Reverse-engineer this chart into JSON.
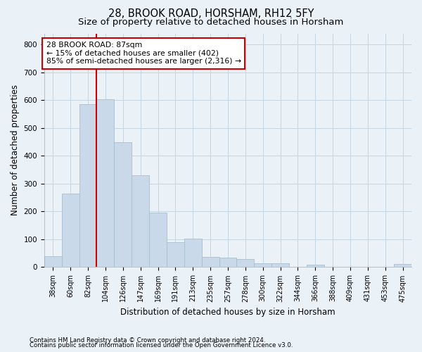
{
  "title1": "28, BROOK ROAD, HORSHAM, RH12 5FY",
  "title2": "Size of property relative to detached houses in Horsham",
  "xlabel": "Distribution of detached houses by size in Horsham",
  "ylabel": "Number of detached properties",
  "bar_labels": [
    "38sqm",
    "60sqm",
    "82sqm",
    "104sqm",
    "126sqm",
    "147sqm",
    "169sqm",
    "191sqm",
    "213sqm",
    "235sqm",
    "257sqm",
    "278sqm",
    "300sqm",
    "322sqm",
    "344sqm",
    "366sqm",
    "388sqm",
    "409sqm",
    "431sqm",
    "453sqm",
    "475sqm"
  ],
  "bar_values": [
    38,
    265,
    585,
    603,
    450,
    330,
    197,
    90,
    102,
    37,
    35,
    30,
    13,
    13,
    0,
    8,
    0,
    0,
    0,
    0,
    10
  ],
  "bar_color": "#c9d9ea",
  "bar_edgecolor": "#a8becc",
  "grid_color": "#c5d5e2",
  "bg_color": "#eaf1f7",
  "red_line_index": 2,
  "annotation_text": "28 BROOK ROAD: 87sqm\n← 15% of detached houses are smaller (402)\n85% of semi-detached houses are larger (2,316) →",
  "annotation_box_color": "#ffffff",
  "annotation_border_color": "#cc0000",
  "ylim": [
    0,
    840
  ],
  "yticks": [
    0,
    100,
    200,
    300,
    400,
    500,
    600,
    700,
    800
  ],
  "footnote1": "Contains HM Land Registry data © Crown copyright and database right 2024.",
  "footnote2": "Contains public sector information licensed under the Open Government Licence v3.0.",
  "title1_fontsize": 10.5,
  "title2_fontsize": 9.5,
  "tick_fontsize": 7,
  "ylabel_fontsize": 8.5,
  "xlabel_fontsize": 8.5,
  "annotation_fontsize": 7.8,
  "footnote_fontsize": 6.2
}
